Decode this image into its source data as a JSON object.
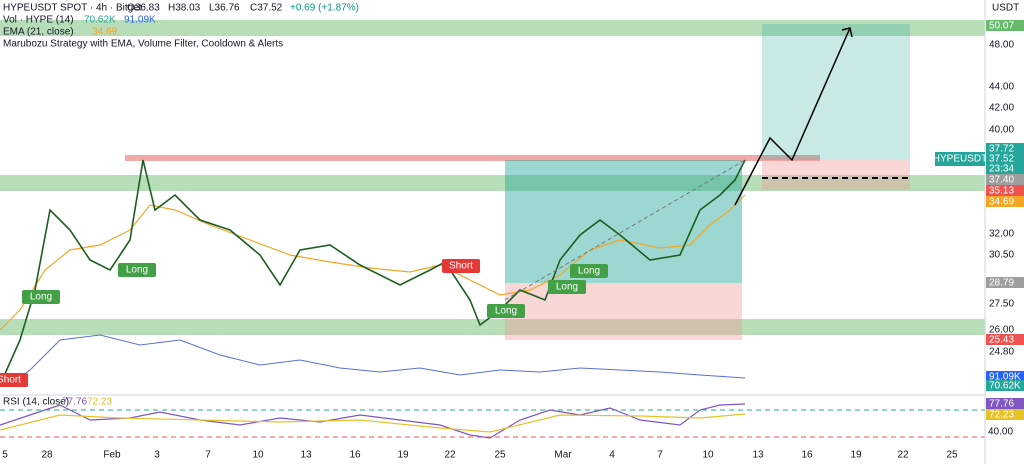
{
  "header": {
    "symbol": "HYPEUSDT SPOT · 4h · Bitget",
    "open": "O36.83",
    "high": "H38.03",
    "low": "L36.76",
    "close": "C37.52",
    "change": "+0.69 (+1.87%)",
    "volume_label": "Vol · HYPE (14)",
    "volume_1": "70.62K",
    "volume_2": "91.09K",
    "ema_label": "EMA (21, close)",
    "ema_value": "34.69",
    "strategy": "Marubozu Strategy with EMA, Volume Filter, Cooldown & Alerts"
  },
  "price_axis": {
    "unit": "USDT",
    "labels": [
      "48.00",
      "44.00",
      "42.00",
      "40.00",
      "32.00",
      "30.50",
      "27.50",
      "26.00",
      "24.80"
    ]
  },
  "price_tags": [
    "50.07",
    "37.72",
    "37.52",
    "23:34",
    "37.40",
    "35.13",
    "34.69",
    "28.79",
    "25.43",
    "91.09K",
    "70.62K"
  ],
  "symbol_tag": "HYPEUSDT",
  "signals": [
    "Long",
    "Long",
    "Short",
    "Long",
    "Long",
    "Long",
    "Short"
  ],
  "rsi": {
    "label": "RSI (14, close)",
    "value_1": "77.76",
    "value_2": "72.23",
    "axis_label": "40.00",
    "tags": [
      "77.76",
      "72.23"
    ]
  },
  "date_axis": [
    "5",
    "28",
    "Feb",
    "3",
    "7",
    "10",
    "13",
    "16",
    "19",
    "22",
    "25",
    "Mar",
    "4",
    "7",
    "10",
    "13",
    "16",
    "19",
    "22",
    "25"
  ]
}
